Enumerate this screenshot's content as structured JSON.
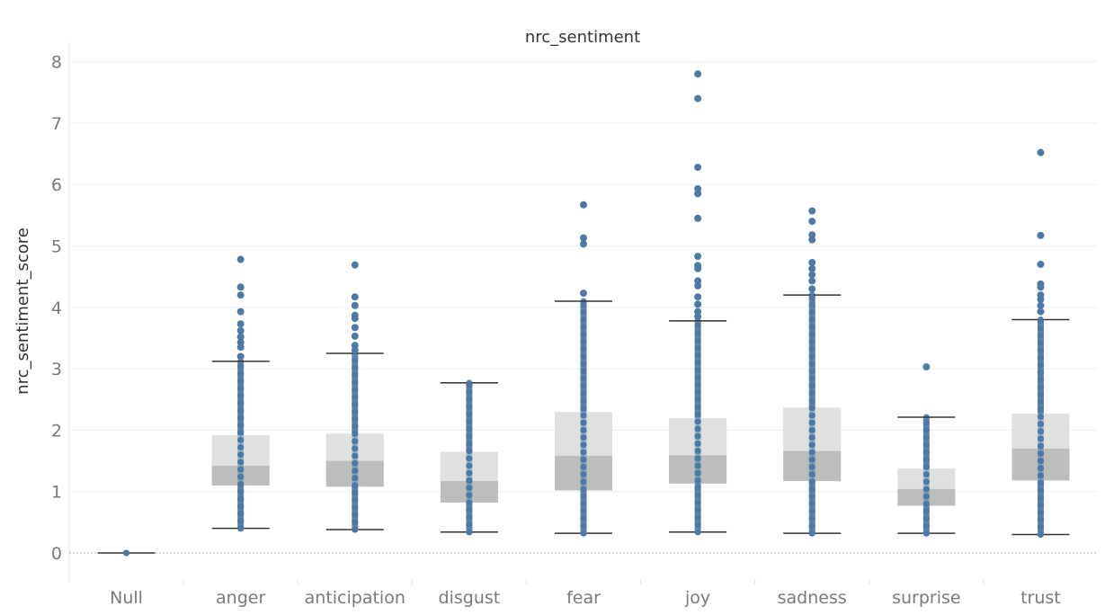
{
  "chart_data": {
    "type": "box",
    "title": "nrc_sentiment",
    "ylabel": "nrc_sentiment_score",
    "xlabel": "",
    "ylim": [
      -0.45,
      8.3
    ],
    "yticks": [
      0,
      1,
      2,
      3,
      4,
      5,
      6,
      7,
      8
    ],
    "grid": true,
    "colors": {
      "point": "#4e79a7",
      "box_upper": "#e0e0e0",
      "box_lower": "#bdbdbd",
      "whisker": "#333333",
      "grid": "#efefef",
      "zero_line": "#b0b0b0"
    },
    "categories": [
      "Null",
      "anger",
      "anticipation",
      "disgust",
      "fear",
      "joy",
      "sadness",
      "surprise",
      "trust"
    ],
    "boxes": [
      {
        "category": "Null",
        "whisker_low": 0,
        "q1": 0,
        "median": 0,
        "q3": 0,
        "whisker_high": 0,
        "outliers": []
      },
      {
        "category": "anger",
        "whisker_low": 0.4,
        "q1": 1.1,
        "median": 1.42,
        "q3": 1.92,
        "whisker_high": 3.12,
        "outliers": [
          3.2,
          3.35,
          3.43,
          3.52,
          3.62,
          3.73,
          3.93,
          4.2,
          4.33,
          4.78
        ]
      },
      {
        "category": "anticipation",
        "whisker_low": 0.38,
        "q1": 1.08,
        "median": 1.5,
        "q3": 1.95,
        "whisker_high": 3.25,
        "outliers": [
          3.3,
          3.38,
          3.53,
          3.67,
          3.82,
          3.87,
          4.03,
          4.17,
          4.69
        ]
      },
      {
        "category": "disgust",
        "whisker_low": 0.34,
        "q1": 0.82,
        "median": 1.17,
        "q3": 1.65,
        "whisker_high": 2.77,
        "outliers": []
      },
      {
        "category": "fear",
        "whisker_low": 0.32,
        "q1": 1.02,
        "median": 1.58,
        "q3": 2.3,
        "whisker_high": 4.1,
        "outliers": [
          4.23,
          5.03,
          5.13,
          5.67
        ]
      },
      {
        "category": "joy",
        "whisker_low": 0.34,
        "q1": 1.13,
        "median": 1.59,
        "q3": 2.2,
        "whisker_high": 3.78,
        "outliers": [
          3.85,
          3.93,
          4.05,
          4.17,
          4.35,
          4.43,
          4.63,
          4.68,
          4.83,
          5.45,
          5.85,
          5.93,
          6.28,
          7.4,
          7.8
        ]
      },
      {
        "category": "sadness",
        "whisker_low": 0.32,
        "q1": 1.17,
        "median": 1.66,
        "q3": 2.37,
        "whisker_high": 4.2,
        "outliers": [
          4.3,
          4.43,
          4.53,
          4.63,
          4.73,
          5.1,
          5.18,
          5.4,
          5.57
        ]
      },
      {
        "category": "surprise",
        "whisker_low": 0.32,
        "q1": 0.77,
        "median": 1.04,
        "q3": 1.38,
        "whisker_high": 2.21,
        "outliers": [
          3.03
        ]
      },
      {
        "category": "trust",
        "whisker_low": 0.3,
        "q1": 1.18,
        "median": 1.7,
        "q3": 2.27,
        "whisker_high": 3.8,
        "outliers": [
          3.93,
          4.03,
          4.13,
          4.2,
          4.33,
          4.38,
          4.7,
          5.17,
          6.52
        ]
      }
    ]
  }
}
